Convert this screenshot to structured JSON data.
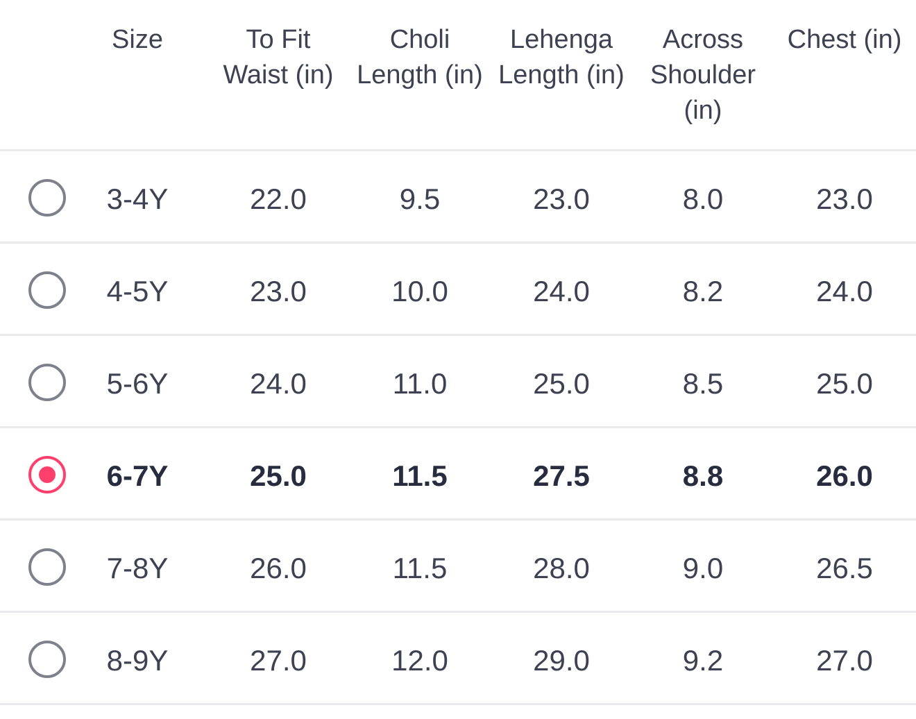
{
  "table": {
    "headers": {
      "size": "Size",
      "waist": "To Fit\nWaist (in)",
      "choli": "Choli\nLength (in)",
      "lehenga": "Lehenga\nLength (in)",
      "shoulder": "Across\nShoulder\n(in)",
      "chest": "Chest (in)"
    },
    "selected_size": "6-7Y",
    "accent_color": "#ff3f6c",
    "radio_color": "#7e818c",
    "rows": [
      {
        "size": "3-4Y",
        "waist": "22.0",
        "choli": "9.5",
        "lehenga": "23.0",
        "shoulder": "8.0",
        "chest": "23.0",
        "selected": false
      },
      {
        "size": "4-5Y",
        "waist": "23.0",
        "choli": "10.0",
        "lehenga": "24.0",
        "shoulder": "8.2",
        "chest": "24.0",
        "selected": false
      },
      {
        "size": "5-6Y",
        "waist": "24.0",
        "choli": "11.0",
        "lehenga": "25.0",
        "shoulder": "8.5",
        "chest": "25.0",
        "selected": false
      },
      {
        "size": "6-7Y",
        "waist": "25.0",
        "choli": "11.5",
        "lehenga": "27.5",
        "shoulder": "8.8",
        "chest": "26.0",
        "selected": true
      },
      {
        "size": "7-8Y",
        "waist": "26.0",
        "choli": "11.5",
        "lehenga": "28.0",
        "shoulder": "9.0",
        "chest": "26.5",
        "selected": false
      },
      {
        "size": "8-9Y",
        "waist": "27.0",
        "choli": "12.0",
        "lehenga": "29.0",
        "shoulder": "9.2",
        "chest": "27.0",
        "selected": false
      }
    ]
  }
}
